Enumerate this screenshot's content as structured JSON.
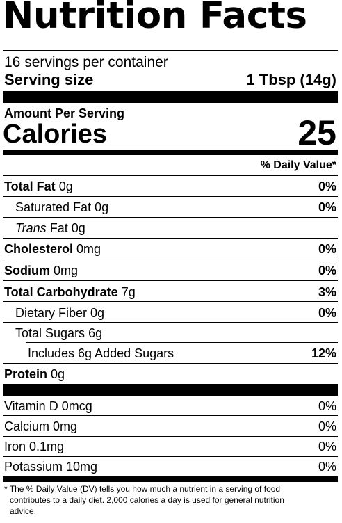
{
  "header": {
    "title": "Nutrition Facts",
    "servings_per_container": "16 servings per container",
    "serving_size_label": "Serving size",
    "serving_size_value": "1 Tbsp (14g)"
  },
  "calories": {
    "amount_per_serving": "Amount Per Serving",
    "label": "Calories",
    "value": "25"
  },
  "daily_value_header": "% Daily Value*",
  "nutrients": {
    "total_fat": {
      "label": "Total Fat",
      "amount": "0g",
      "dv": "0%"
    },
    "saturated_fat": {
      "label": "Saturated Fat",
      "amount": "0g",
      "dv": "0%"
    },
    "trans_fat": {
      "label": "Trans",
      "suffix": "Fat",
      "amount": "0g"
    },
    "cholesterol": {
      "label": "Cholesterol",
      "amount": "0mg",
      "dv": "0%"
    },
    "sodium": {
      "label": "Sodium",
      "amount": "0mg",
      "dv": "0%"
    },
    "total_carbohydrate": {
      "label": "Total Carbohydrate",
      "amount": "7g",
      "dv": "3%"
    },
    "dietary_fiber": {
      "label": "Dietary Fiber",
      "amount": "0g",
      "dv": "0%"
    },
    "total_sugars": {
      "label": "Total Sugars",
      "amount": "6g"
    },
    "added_sugars": {
      "label": "Includes 6g Added Sugars",
      "dv": "12%"
    },
    "protein": {
      "label": "Protein",
      "amount": "0g"
    }
  },
  "vitamins": {
    "vitamin_d": {
      "label": "Vitamin D 0mcg",
      "dv": "0%"
    },
    "calcium": {
      "label": "Calcium 0mg",
      "dv": "0%"
    },
    "iron": {
      "label": "Iron 0.1mg",
      "dv": "0%"
    },
    "potassium": {
      "label": "Potassium 10mg",
      "dv": "0%"
    }
  },
  "footnote": {
    "line1": "* The % Daily Value (DV) tells you how much a nutrient in a serving of food",
    "line2": "contributes to a daily diet. 2,000 calories a day is used for general nutrition",
    "line3": "advice."
  }
}
